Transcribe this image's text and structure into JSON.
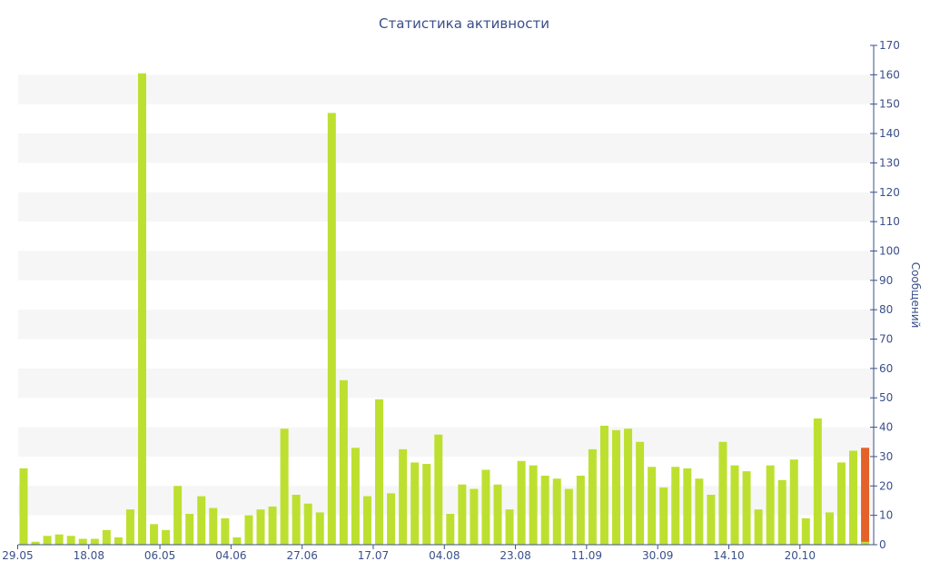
{
  "chart_data": {
    "type": "bar",
    "title": "Статистика активности",
    "ylabel": "Сообщений",
    "xlabel": "",
    "ylim": [
      0,
      170
    ],
    "y_ticks": [
      0,
      10,
      20,
      30,
      40,
      50,
      60,
      70,
      80,
      90,
      100,
      110,
      120,
      130,
      140,
      150,
      160,
      170
    ],
    "x_tick_labels": [
      "29.05",
      "18.08",
      "06.05",
      "04.06",
      "27.06",
      "17.07",
      "04.08",
      "23.08",
      "11.09",
      "30.09",
      "14.10",
      "20.10"
    ],
    "grid": "alternating horizontal bands",
    "colors": {
      "bar": "#bde030",
      "highlight": "#e4622a",
      "text": "#3a4f8a",
      "band": "#f6f6f6"
    },
    "values": [
      26,
      1,
      3,
      3.5,
      3,
      2,
      2,
      5,
      2.5,
      12,
      160.5,
      7,
      5,
      20,
      10.5,
      16.5,
      12.5,
      9,
      2.5,
      10,
      12,
      13,
      39.5,
      17,
      14,
      11,
      147,
      56,
      33,
      16.5,
      49.5,
      17.5,
      32.5,
      28,
      27.5,
      37.5,
      10.5,
      20.5,
      19,
      25.5,
      20.5,
      12,
      28.5,
      27,
      23.5,
      22.5,
      19,
      23.5,
      32.5,
      40.5,
      39,
      39.5,
      35,
      26.5,
      19.5,
      26.5,
      26,
      22.5,
      17,
      35,
      27,
      25,
      12,
      27,
      22,
      29,
      9,
      43,
      11,
      28,
      32,
      33
    ],
    "highlight_index": 71
  }
}
